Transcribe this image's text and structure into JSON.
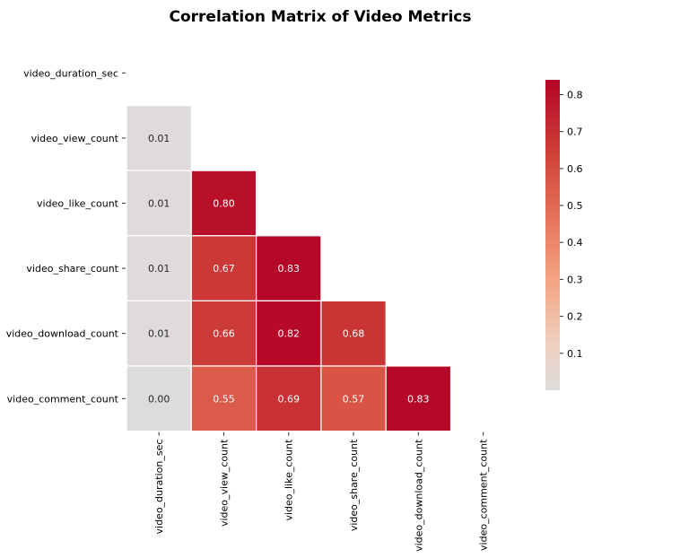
{
  "chart_data": {
    "type": "heatmap",
    "title": "Correlation Matrix of Video Metrics",
    "xlabel": "",
    "ylabel": "",
    "variables": [
      "video_duration_sec",
      "video_view_count",
      "video_like_count",
      "video_share_count",
      "video_download_count",
      "video_comment_count"
    ],
    "matrix": [
      [
        null,
        null,
        null,
        null,
        null,
        null
      ],
      [
        0.01,
        null,
        null,
        null,
        null,
        null
      ],
      [
        0.01,
        0.8,
        null,
        null,
        null,
        null
      ],
      [
        0.01,
        0.67,
        0.83,
        null,
        null,
        null
      ],
      [
        0.01,
        0.66,
        0.82,
        0.68,
        null,
        null
      ],
      [
        0.0,
        0.55,
        0.69,
        0.57,
        0.83,
        null
      ]
    ],
    "mask": "upper triangle and diagonal",
    "value_format": "0.00",
    "colormap": "coolwarm (upper half)",
    "colorbar": {
      "range": [
        0.0,
        0.84
      ],
      "ticks": [
        0.1,
        0.2,
        0.3,
        0.4,
        0.5,
        0.6,
        0.7,
        0.8
      ],
      "tick_labels": [
        "0.1",
        "0.2",
        "0.3",
        "0.4",
        "0.5",
        "0.6",
        "0.7",
        "0.8"
      ],
      "placement": "right"
    },
    "grid": false,
    "cell_separator_color": "#ffffff"
  }
}
